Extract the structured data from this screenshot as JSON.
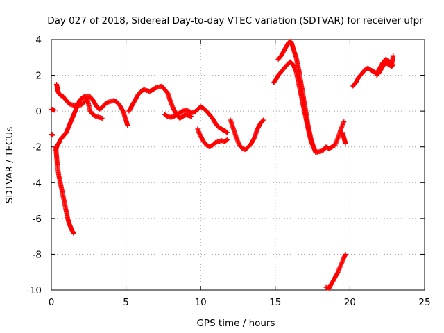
{
  "chart_data": {
    "type": "scatter",
    "title": "Day 027 of 2018, Sidereal Day-to-day VTEC variation (SDTVAR) for receiver ufpr",
    "xlabel": "GPS time / hours",
    "ylabel": "SDTVAR / TECUs",
    "xlim": [
      0,
      25
    ],
    "ylim": [
      -10,
      4
    ],
    "xticks": [
      0,
      5,
      10,
      15,
      20,
      25
    ],
    "yticks": [
      -10,
      -8,
      -6,
      -4,
      -2,
      0,
      2,
      4
    ],
    "xtick_labels": [
      "0",
      "5",
      "10",
      "15",
      "20",
      "25"
    ],
    "ytick_labels": [
      "-10",
      "-8",
      "-6",
      "-4",
      "-2",
      "0",
      "2",
      "4"
    ],
    "grid": true,
    "marker": "plus",
    "color": "#ff0000",
    "series": [
      {
        "x": [
          0.0,
          0.1,
          0.2
        ],
        "y": [
          0.1,
          0.1,
          0.05
        ]
      },
      {
        "x": [
          0.0,
          0.05,
          0.1
        ],
        "y": [
          -1.3,
          -1.3,
          -1.35
        ]
      },
      {
        "x": [
          0.3,
          0.35,
          0.4,
          0.45,
          0.5,
          0.6,
          0.7,
          0.8,
          0.9,
          1.0,
          1.1,
          1.2,
          1.3,
          1.4,
          1.5
        ],
        "y": [
          -2.0,
          -2.5,
          -3.0,
          -3.3,
          -3.6,
          -4.0,
          -4.4,
          -4.8,
          -5.2,
          -5.6,
          -6.0,
          -6.3,
          -6.5,
          -6.7,
          -6.85
        ]
      },
      {
        "x": [
          0.3,
          0.4,
          0.5,
          0.6,
          0.7,
          0.8,
          0.9,
          1.0,
          1.1,
          1.2,
          1.3,
          1.4,
          1.5,
          1.6,
          1.7,
          1.8,
          1.9,
          2.0,
          2.2,
          2.4,
          2.6,
          2.8,
          3.0,
          3.2,
          3.4,
          3.6,
          3.8,
          4.0,
          4.2,
          4.4,
          4.6,
          4.8,
          5.0,
          5.1
        ],
        "y": [
          -2.2,
          -1.9,
          -1.8,
          -1.6,
          -1.5,
          -1.4,
          -1.3,
          -1.2,
          -1.0,
          -0.8,
          -0.6,
          -0.4,
          -0.2,
          0.0,
          0.2,
          0.4,
          0.6,
          0.7,
          0.8,
          0.85,
          0.8,
          0.6,
          0.3,
          0.1,
          0.2,
          0.4,
          0.5,
          0.55,
          0.6,
          0.5,
          0.3,
          0.0,
          -0.5,
          -0.8
        ]
      },
      {
        "x": [
          0.35,
          0.4,
          0.45,
          0.5,
          0.6,
          0.7,
          0.8,
          0.9,
          1.0,
          1.1,
          1.2,
          1.4,
          1.6,
          1.8,
          2.0,
          2.2,
          2.4,
          2.6,
          2.8,
          3.0,
          3.2,
          3.4
        ],
        "y": [
          1.5,
          1.3,
          1.1,
          1.0,
          0.9,
          0.85,
          0.8,
          0.7,
          0.6,
          0.5,
          0.4,
          0.35,
          0.3,
          0.3,
          0.35,
          0.5,
          0.7,
          0.0,
          -0.2,
          -0.3,
          -0.35,
          -0.4
        ]
      },
      {
        "x": [
          5.2,
          5.4,
          5.6,
          5.8,
          6.0,
          6.2,
          6.4,
          6.6,
          6.8,
          7.0,
          7.2,
          7.4,
          7.6,
          7.8,
          8.0,
          8.2,
          8.4,
          8.6,
          8.8,
          9.0,
          9.2,
          9.4
        ],
        "y": [
          0.0,
          0.3,
          0.6,
          0.9,
          1.1,
          1.2,
          1.15,
          1.1,
          1.2,
          1.3,
          1.35,
          1.4,
          1.2,
          1.0,
          0.5,
          0.1,
          -0.2,
          -0.4,
          -0.3,
          -0.2,
          -0.25,
          -0.3
        ]
      },
      {
        "x": [
          7.6,
          7.8,
          8.0,
          8.2,
          8.4,
          8.6,
          8.8,
          9.0,
          9.2,
          9.4,
          9.6,
          9.8,
          10.0,
          10.2,
          10.4,
          10.6,
          10.8,
          11.0,
          11.2,
          11.4,
          11.6,
          11.8
        ],
        "y": [
          -0.2,
          -0.3,
          -0.35,
          -0.3,
          -0.2,
          -0.1,
          0.0,
          0.05,
          0.0,
          -0.1,
          -0.05,
          0.1,
          0.25,
          0.15,
          0.0,
          -0.2,
          -0.4,
          -0.7,
          -0.9,
          -1.0,
          -1.1,
          -1.2
        ]
      },
      {
        "x": [
          9.8,
          10.0,
          10.2,
          10.4,
          10.6,
          10.8,
          11.0,
          11.2,
          11.4,
          11.6,
          11.8
        ],
        "y": [
          -1.0,
          -1.4,
          -1.7,
          -1.9,
          -2.0,
          -1.9,
          -1.75,
          -1.7,
          -1.65,
          -1.7,
          -1.6
        ]
      },
      {
        "x": [
          12.0,
          12.2,
          12.4,
          12.6,
          12.8,
          13.0,
          13.2,
          13.4,
          13.6,
          13.8,
          14.0,
          14.2
        ],
        "y": [
          -0.5,
          -1.0,
          -1.5,
          -1.9,
          -2.1,
          -2.15,
          -2.0,
          -1.8,
          -1.5,
          -1.0,
          -0.7,
          -0.5
        ]
      },
      {
        "x": [
          14.9,
          15.0,
          15.2,
          15.4,
          15.6,
          15.8,
          16.0,
          16.2,
          16.4,
          16.6,
          16.8,
          17.0,
          17.2,
          17.4,
          17.6,
          17.7
        ],
        "y": [
          1.6,
          1.7,
          2.0,
          2.2,
          2.4,
          2.6,
          2.75,
          2.6,
          2.2,
          1.4,
          0.6,
          -0.2,
          -1.0,
          -1.7,
          -2.1,
          -2.3
        ]
      },
      {
        "x": [
          15.2,
          15.4,
          15.6,
          15.8,
          15.9,
          16.0,
          16.1,
          16.2,
          16.4,
          16.6,
          16.8,
          17.0,
          17.2,
          17.4,
          17.6,
          17.8,
          18.0,
          18.2,
          18.4,
          18.6,
          18.8,
          19.0,
          19.2,
          19.4,
          19.6
        ],
        "y": [
          2.9,
          3.1,
          3.4,
          3.7,
          3.85,
          3.9,
          3.8,
          3.5,
          3.0,
          2.2,
          1.2,
          0.2,
          -0.8,
          -1.6,
          -2.1,
          -2.3,
          -2.25,
          -2.2,
          -2.0,
          -2.1,
          -2.0,
          -1.9,
          -1.5,
          -1.0,
          -0.6
        ]
      },
      {
        "x": [
          18.4,
          18.6,
          18.8,
          19.0,
          19.2,
          19.4,
          19.6,
          19.7
        ],
        "y": [
          -9.85,
          -9.9,
          -9.6,
          -9.3,
          -9.0,
          -8.6,
          -8.2,
          -8.0
        ]
      },
      {
        "x": [
          19.5,
          19.6,
          19.7
        ],
        "y": [
          -1.2,
          -1.5,
          -1.8
        ]
      },
      {
        "x": [
          20.2,
          20.4,
          20.6,
          20.8,
          21.0,
          21.2,
          21.4,
          21.6,
          21.8,
          22.0,
          22.2,
          22.4,
          22.6,
          22.8,
          22.9
        ],
        "y": [
          1.4,
          1.6,
          1.9,
          2.1,
          2.3,
          2.4,
          2.3,
          2.2,
          2.1,
          2.4,
          2.7,
          2.9,
          2.8,
          2.6,
          3.1
        ]
      },
      {
        "x": [
          21.8,
          22.0,
          22.2,
          22.4,
          22.6,
          22.8,
          22.9
        ],
        "y": [
          2.0,
          2.2,
          2.5,
          2.7,
          2.6,
          2.5,
          2.6
        ]
      }
    ]
  }
}
